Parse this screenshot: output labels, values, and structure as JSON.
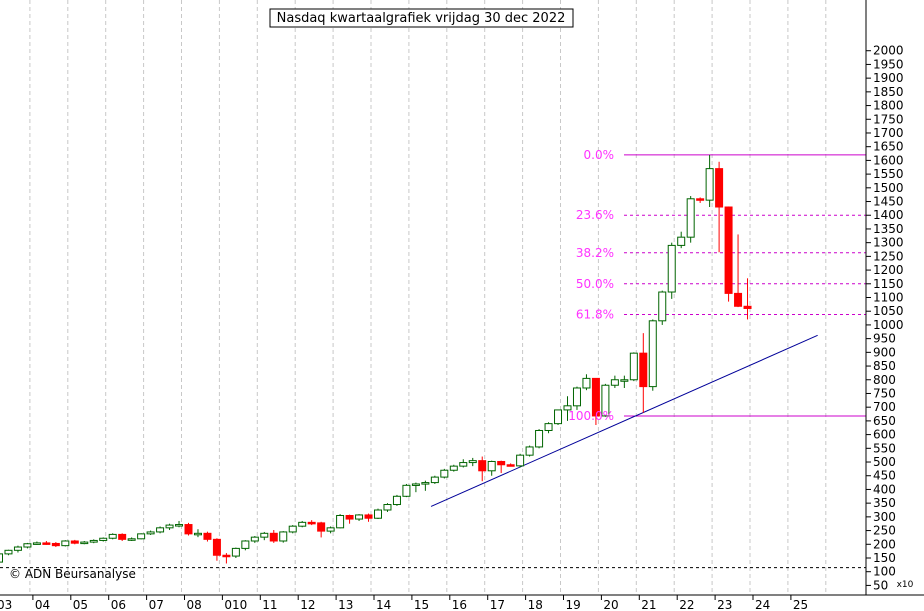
{
  "chart_data": {
    "type": "candlestick",
    "title": "Nasdaq kwartaalgrafiek vrijdag 30 dec 2022",
    "credit": "© ADN Beursanalyse",
    "x_unit_label": "x10",
    "x_tick_labels": [
      "03",
      "04",
      "05",
      "06",
      "07",
      "08",
      "010",
      "11",
      "12",
      "13",
      "14",
      "15",
      "16",
      "17",
      "18",
      "19",
      "20",
      "21",
      "22",
      "23",
      "24",
      "25"
    ],
    "y_ticks": [
      50,
      100,
      150,
      200,
      250,
      300,
      350,
      400,
      450,
      500,
      550,
      600,
      650,
      700,
      750,
      800,
      850,
      900,
      950,
      1000,
      1050,
      1100,
      1150,
      1200,
      1250,
      1300,
      1350,
      1400,
      1450,
      1500,
      1550,
      1600,
      1650,
      1700,
      1750,
      1800,
      1850,
      1900,
      1950,
      2000
    ],
    "ylim": [
      45,
      2045
    ],
    "colors": {
      "up_border": "#006400",
      "down_fill": "#ff0000",
      "fib": "#cc00cc",
      "fib_text": "#ff33ff",
      "trend": "#000099",
      "baseline": "#000000",
      "grid": "#c8c8c8"
    },
    "fibonacci": [
      {
        "label": "0.0%",
        "value": 1620
      },
      {
        "label": "23.6%",
        "value": 1400
      },
      {
        "label": "38.2%",
        "value": 1263
      },
      {
        "label": "50.0%",
        "value": 1150
      },
      {
        "label": "61.8%",
        "value": 1038
      },
      {
        "label": "100.0%",
        "value": 668
      }
    ],
    "baseline_value": 115,
    "trendline": {
      "start": {
        "x": 2014.4,
        "y": 338
      },
      "end": {
        "x": 2024.6,
        "y": 962
      }
    },
    "candles": [
      {
        "x": 2003.0,
        "o": 135,
        "h": 170,
        "l": 125,
        "c": 165
      },
      {
        "x": 2003.25,
        "o": 165,
        "h": 180,
        "l": 160,
        "c": 178
      },
      {
        "x": 2003.5,
        "o": 178,
        "h": 195,
        "l": 170,
        "c": 190
      },
      {
        "x": 2003.75,
        "o": 190,
        "h": 205,
        "l": 185,
        "c": 202
      },
      {
        "x": 2004.0,
        "o": 202,
        "h": 210,
        "l": 198,
        "c": 205
      },
      {
        "x": 2004.25,
        "o": 205,
        "h": 212,
        "l": 198,
        "c": 203
      },
      {
        "x": 2004.5,
        "o": 203,
        "h": 208,
        "l": 190,
        "c": 195
      },
      {
        "x": 2004.75,
        "o": 195,
        "h": 215,
        "l": 192,
        "c": 212
      },
      {
        "x": 2005.0,
        "o": 212,
        "h": 216,
        "l": 200,
        "c": 204
      },
      {
        "x": 2005.25,
        "o": 204,
        "h": 212,
        "l": 200,
        "c": 208
      },
      {
        "x": 2005.5,
        "o": 208,
        "h": 218,
        "l": 204,
        "c": 214
      },
      {
        "x": 2005.75,
        "o": 214,
        "h": 225,
        "l": 210,
        "c": 222
      },
      {
        "x": 2006.0,
        "o": 222,
        "h": 240,
        "l": 218,
        "c": 236
      },
      {
        "x": 2006.25,
        "o": 236,
        "h": 240,
        "l": 212,
        "c": 218
      },
      {
        "x": 2006.5,
        "o": 218,
        "h": 225,
        "l": 212,
        "c": 220
      },
      {
        "x": 2006.75,
        "o": 220,
        "h": 240,
        "l": 218,
        "c": 238
      },
      {
        "x": 2007.0,
        "o": 238,
        "h": 250,
        "l": 234,
        "c": 245
      },
      {
        "x": 2007.25,
        "o": 245,
        "h": 265,
        "l": 240,
        "c": 260
      },
      {
        "x": 2007.5,
        "o": 260,
        "h": 275,
        "l": 252,
        "c": 270
      },
      {
        "x": 2007.75,
        "o": 270,
        "h": 285,
        "l": 262,
        "c": 272
      },
      {
        "x": 2008.0,
        "o": 272,
        "h": 278,
        "l": 232,
        "c": 238
      },
      {
        "x": 2008.25,
        "o": 238,
        "h": 255,
        "l": 226,
        "c": 240
      },
      {
        "x": 2008.5,
        "o": 240,
        "h": 246,
        "l": 210,
        "c": 218
      },
      {
        "x": 2008.75,
        "o": 218,
        "h": 222,
        "l": 140,
        "c": 160
      },
      {
        "x": 2009.0,
        "o": 160,
        "h": 168,
        "l": 130,
        "c": 157
      },
      {
        "x": 2009.25,
        "o": 157,
        "h": 188,
        "l": 150,
        "c": 185
      },
      {
        "x": 2009.5,
        "o": 185,
        "h": 215,
        "l": 178,
        "c": 212
      },
      {
        "x": 2009.75,
        "o": 212,
        "h": 230,
        "l": 205,
        "c": 226
      },
      {
        "x": 2010.0,
        "o": 226,
        "h": 245,
        "l": 215,
        "c": 240
      },
      {
        "x": 2010.25,
        "o": 240,
        "h": 252,
        "l": 205,
        "c": 212
      },
      {
        "x": 2010.5,
        "o": 212,
        "h": 248,
        "l": 206,
        "c": 245
      },
      {
        "x": 2010.75,
        "o": 245,
        "h": 270,
        "l": 240,
        "c": 266
      },
      {
        "x": 2011.0,
        "o": 266,
        "h": 285,
        "l": 262,
        "c": 280
      },
      {
        "x": 2011.25,
        "o": 280,
        "h": 288,
        "l": 270,
        "c": 278
      },
      {
        "x": 2011.5,
        "o": 278,
        "h": 282,
        "l": 225,
        "c": 248
      },
      {
        "x": 2011.75,
        "o": 248,
        "h": 265,
        "l": 240,
        "c": 260
      },
      {
        "x": 2012.0,
        "o": 260,
        "h": 310,
        "l": 258,
        "c": 305
      },
      {
        "x": 2012.25,
        "o": 305,
        "h": 308,
        "l": 275,
        "c": 292
      },
      {
        "x": 2012.5,
        "o": 292,
        "h": 310,
        "l": 285,
        "c": 307
      },
      {
        "x": 2012.75,
        "o": 307,
        "h": 312,
        "l": 282,
        "c": 295
      },
      {
        "x": 2013.0,
        "o": 295,
        "h": 330,
        "l": 292,
        "c": 325
      },
      {
        "x": 2013.25,
        "o": 325,
        "h": 350,
        "l": 318,
        "c": 345
      },
      {
        "x": 2013.5,
        "o": 345,
        "h": 380,
        "l": 340,
        "c": 375
      },
      {
        "x": 2013.75,
        "o": 375,
        "h": 420,
        "l": 372,
        "c": 415
      },
      {
        "x": 2014.0,
        "o": 415,
        "h": 425,
        "l": 390,
        "c": 420
      },
      {
        "x": 2014.25,
        "o": 420,
        "h": 432,
        "l": 395,
        "c": 425
      },
      {
        "x": 2014.5,
        "o": 425,
        "h": 450,
        "l": 420,
        "c": 445
      },
      {
        "x": 2014.75,
        "o": 445,
        "h": 475,
        "l": 440,
        "c": 470
      },
      {
        "x": 2015.0,
        "o": 470,
        "h": 490,
        "l": 465,
        "c": 485
      },
      {
        "x": 2015.25,
        "o": 485,
        "h": 510,
        "l": 480,
        "c": 498
      },
      {
        "x": 2015.5,
        "o": 498,
        "h": 515,
        "l": 485,
        "c": 505
      },
      {
        "x": 2015.75,
        "o": 505,
        "h": 520,
        "l": 430,
        "c": 468
      },
      {
        "x": 2016.0,
        "o": 468,
        "h": 505,
        "l": 450,
        "c": 502
      },
      {
        "x": 2016.25,
        "o": 502,
        "h": 505,
        "l": 460,
        "c": 490
      },
      {
        "x": 2016.5,
        "o": 490,
        "h": 495,
        "l": 485,
        "c": 486
      },
      {
        "x": 2016.75,
        "o": 486,
        "h": 530,
        "l": 480,
        "c": 525
      },
      {
        "x": 2017.0,
        "o": 525,
        "h": 560,
        "l": 520,
        "c": 555
      },
      {
        "x": 2017.25,
        "o": 555,
        "h": 620,
        "l": 550,
        "c": 615
      },
      {
        "x": 2017.5,
        "o": 615,
        "h": 645,
        "l": 605,
        "c": 640
      },
      {
        "x": 2017.75,
        "o": 640,
        "h": 690,
        "l": 635,
        "c": 690
      },
      {
        "x": 2018.0,
        "o": 690,
        "h": 740,
        "l": 650,
        "c": 705
      },
      {
        "x": 2018.25,
        "o": 705,
        "h": 775,
        "l": 690,
        "c": 770
      },
      {
        "x": 2018.5,
        "o": 770,
        "h": 820,
        "l": 762,
        "c": 805
      },
      {
        "x": 2018.75,
        "o": 805,
        "h": 805,
        "l": 635,
        "c": 668
      },
      {
        "x": 2019.0,
        "o": 668,
        "h": 785,
        "l": 665,
        "c": 780
      },
      {
        "x": 2019.25,
        "o": 780,
        "h": 815,
        "l": 770,
        "c": 800
      },
      {
        "x": 2019.5,
        "o": 800,
        "h": 815,
        "l": 770,
        "c": 800
      },
      {
        "x": 2019.75,
        "o": 800,
        "h": 900,
        "l": 795,
        "c": 897
      },
      {
        "x": 2020.0,
        "o": 897,
        "h": 970,
        "l": 680,
        "c": 775
      },
      {
        "x": 2020.25,
        "o": 775,
        "h": 1020,
        "l": 760,
        "c": 1015
      },
      {
        "x": 2020.5,
        "o": 1015,
        "h": 1125,
        "l": 1000,
        "c": 1120
      },
      {
        "x": 2020.75,
        "o": 1120,
        "h": 1300,
        "l": 1095,
        "c": 1290
      },
      {
        "x": 2021.0,
        "o": 1290,
        "h": 1340,
        "l": 1280,
        "c": 1320
      },
      {
        "x": 2021.25,
        "o": 1320,
        "h": 1470,
        "l": 1300,
        "c": 1460
      },
      {
        "x": 2021.5,
        "o": 1460,
        "h": 1465,
        "l": 1445,
        "c": 1455
      },
      {
        "x": 2021.75,
        "o": 1455,
        "h": 1620,
        "l": 1430,
        "c": 1570
      },
      {
        "x": 2022.0,
        "o": 1570,
        "h": 1595,
        "l": 1265,
        "c": 1430
      },
      {
        "x": 2022.25,
        "o": 1430,
        "h": 1432,
        "l": 1085,
        "c": 1115
      },
      {
        "x": 2022.5,
        "o": 1115,
        "h": 1330,
        "l": 1065,
        "c": 1068
      },
      {
        "x": 2022.75,
        "o": 1068,
        "h": 1170,
        "l": 1020,
        "c": 1060
      }
    ]
  }
}
